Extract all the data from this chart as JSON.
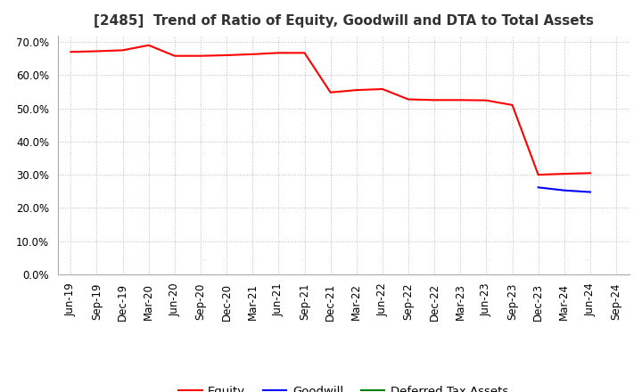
{
  "title": "[2485]  Trend of Ratio of Equity, Goodwill and DTA to Total Assets",
  "x_labels": [
    "Jun-19",
    "Sep-19",
    "Dec-19",
    "Mar-20",
    "Jun-20",
    "Sep-20",
    "Dec-20",
    "Mar-21",
    "Jun-21",
    "Sep-21",
    "Dec-21",
    "Mar-22",
    "Jun-22",
    "Sep-22",
    "Dec-22",
    "Mar-23",
    "Jun-23",
    "Sep-23",
    "Dec-23",
    "Mar-24",
    "Jun-24",
    "Sep-24"
  ],
  "equity": [
    0.67,
    0.672,
    0.675,
    0.69,
    0.658,
    0.658,
    0.66,
    0.663,
    0.667,
    0.667,
    0.548,
    0.555,
    0.558,
    0.527,
    0.525,
    0.525,
    0.524,
    0.51,
    0.3,
    0.303,
    0.305,
    null
  ],
  "goodwill": [
    null,
    null,
    null,
    null,
    null,
    null,
    null,
    null,
    null,
    null,
    null,
    null,
    null,
    null,
    null,
    null,
    null,
    null,
    0.262,
    0.253,
    0.248,
    null
  ],
  "dta": [
    null,
    null,
    null,
    null,
    null,
    null,
    null,
    null,
    null,
    null,
    null,
    null,
    null,
    null,
    null,
    null,
    null,
    null,
    null,
    null,
    null,
    null
  ],
  "equity_color": "#FF0000",
  "goodwill_color": "#0000FF",
  "dta_color": "#008000",
  "ylim": [
    0.0,
    0.72
  ],
  "yticks": [
    0.0,
    0.1,
    0.2,
    0.3,
    0.4,
    0.5,
    0.6,
    0.7
  ],
  "background_color": "#FFFFFF",
  "grid_color": "#BBBBBB",
  "title_fontsize": 11,
  "tick_fontsize": 8.5,
  "legend_fontsize": 9.5
}
